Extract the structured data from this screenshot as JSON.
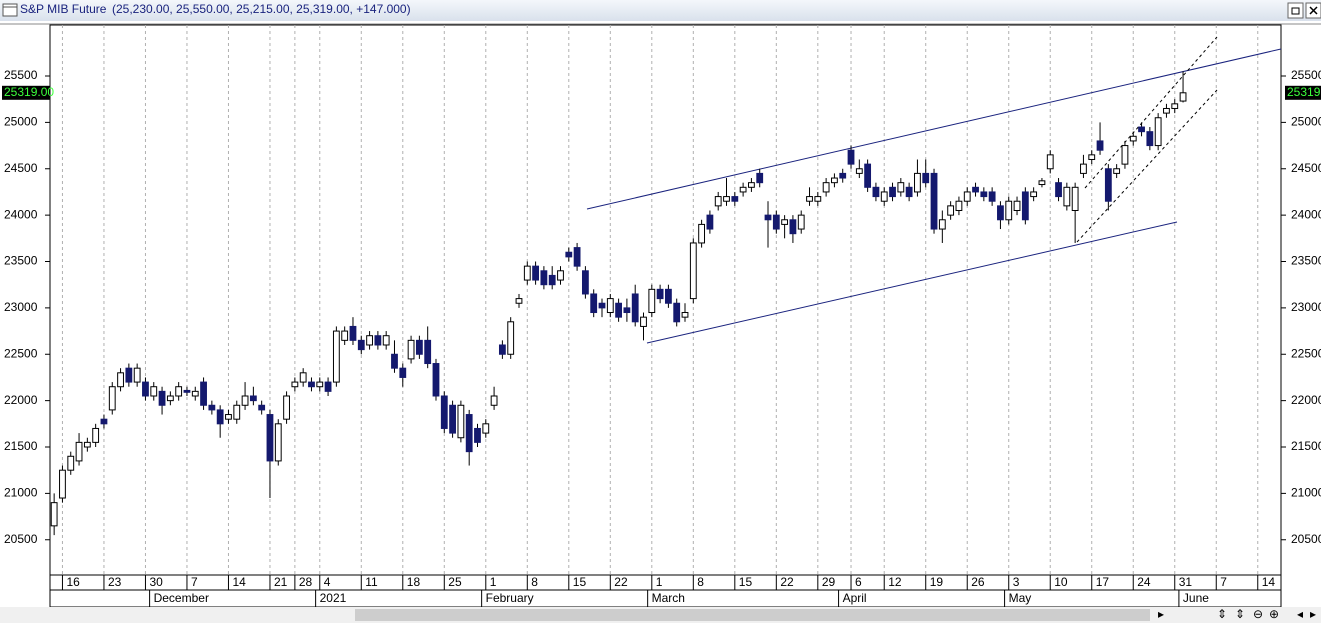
{
  "chart_data": {
    "type": "candlestick",
    "title": "S&P MIB Future",
    "summary": "(25,230.00, 25,550.00, 25,215.00, 25,319.00, +147.000)",
    "last_value_label": "25319.00",
    "up_color": "#ffffff",
    "down_color": "#14196e",
    "xlim": [
      -0.5,
      147.8
    ],
    "ylim": [
      20120,
      26050
    ],
    "yticks": [
      20500,
      21000,
      21500,
      22000,
      22500,
      23000,
      23500,
      24000,
      24500,
      25000,
      25500
    ],
    "xticks": [
      {
        "value": 1,
        "label": "16"
      },
      {
        "value": 6,
        "label": "23"
      },
      {
        "value": 11,
        "label": "30"
      },
      {
        "value": 16,
        "label": "7"
      },
      {
        "value": 21,
        "label": "14"
      },
      {
        "value": 26,
        "label": "21"
      },
      {
        "value": 29,
        "label": "28"
      },
      {
        "value": 32,
        "label": "4"
      },
      {
        "value": 37,
        "label": "11"
      },
      {
        "value": 42,
        "label": "18"
      },
      {
        "value": 47,
        "label": "25"
      },
      {
        "value": 52,
        "label": "1"
      },
      {
        "value": 57,
        "label": "8"
      },
      {
        "value": 62,
        "label": "15"
      },
      {
        "value": 67,
        "label": "22"
      },
      {
        "value": 72,
        "label": "1"
      },
      {
        "value": 77,
        "label": "8"
      },
      {
        "value": 82,
        "label": "15"
      },
      {
        "value": 87,
        "label": "22"
      },
      {
        "value": 92,
        "label": "29"
      },
      {
        "value": 96,
        "label": "6"
      },
      {
        "value": 100,
        "label": "12"
      },
      {
        "value": 105,
        "label": "19"
      },
      {
        "value": 110,
        "label": "26"
      },
      {
        "value": 115,
        "label": "3"
      },
      {
        "value": 120,
        "label": "10"
      },
      {
        "value": 125,
        "label": "17"
      },
      {
        "value": 130,
        "label": "24"
      },
      {
        "value": 135,
        "label": "31"
      },
      {
        "value": 140,
        "label": "7"
      },
      {
        "value": 145,
        "label": "14"
      }
    ],
    "xticks2": [
      {
        "value": 11.5,
        "label": "December"
      },
      {
        "value": 31.5,
        "label": "2021"
      },
      {
        "value": 51.5,
        "label": "February"
      },
      {
        "value": 71.5,
        "label": "March"
      },
      {
        "value": 94.5,
        "label": "April"
      },
      {
        "value": 114.5,
        "label": "May"
      },
      {
        "value": 135.5,
        "label": "June"
      }
    ],
    "open": [
      20650,
      20950,
      21250,
      21350,
      21500,
      21550,
      21800,
      21900,
      22150,
      22350,
      22200,
      22200,
      22050,
      22100,
      22000,
      22050,
      22110,
      22050,
      22200,
      21950,
      21900,
      21800,
      21800,
      21950,
      22050,
      21950,
      21850,
      21350,
      21800,
      22150,
      22200,
      22200,
      22150,
      22200,
      22200,
      22650,
      22800,
      22650,
      22600,
      22700,
      22600,
      22500,
      22350,
      22450,
      22650,
      22650,
      22400,
      22050,
      21950,
      21600,
      21850,
      21700,
      21650,
      21950,
      22600,
      22500,
      23050,
      23300,
      23450,
      23400,
      23350,
      23300,
      23600,
      23650,
      23400,
      23150,
      23050,
      22950,
      23050,
      23000,
      23150,
      22800,
      22950,
      23200,
      23200,
      23050,
      22900,
      23100,
      23700,
      24000,
      24100,
      24150,
      24200,
      24250,
      24300,
      24450,
      24000,
      24000,
      23900,
      23950,
      23850,
      24150,
      24150,
      24250,
      24350,
      24450,
      24700,
      24450,
      24550,
      24300,
      24150,
      24300,
      24250,
      24300,
      24250,
      24450,
      24450,
      23850,
      24000,
      24050,
      24150,
      24300,
      24250,
      24250,
      24100,
      23950,
      24050,
      24250,
      24200,
      24330,
      24500,
      24350,
      24100,
      24050,
      24450,
      24600,
      24800,
      24500,
      24450,
      24550,
      24800,
      24950,
      24900,
      24750,
      25100,
      25150,
      25230
    ],
    "high": [
      21000,
      21300,
      21450,
      21650,
      21600,
      21750,
      21850,
      22200,
      22350,
      22400,
      22400,
      22250,
      22200,
      22150,
      22100,
      22200,
      22150,
      22150,
      22250,
      22000,
      21950,
      21900,
      22000,
      22200,
      22150,
      22000,
      21900,
      21800,
      22100,
      22250,
      22350,
      22250,
      22250,
      22250,
      22800,
      22800,
      22900,
      22700,
      22750,
      22750,
      22750,
      22650,
      22400,
      22700,
      22700,
      22800,
      22450,
      22100,
      22000,
      22000,
      21900,
      21750,
      21800,
      22150,
      22650,
      22900,
      23150,
      23500,
      23500,
      23450,
      23450,
      23450,
      23650,
      23700,
      23450,
      23200,
      23100,
      23150,
      23100,
      23100,
      23250,
      22950,
      23250,
      23250,
      23250,
      23100,
      23050,
      23750,
      23950,
      24050,
      24250,
      24400,
      24250,
      24350,
      24400,
      24500,
      24150,
      24050,
      24000,
      24000,
      24050,
      24300,
      24250,
      24400,
      24450,
      24500,
      24750,
      24600,
      24600,
      24350,
      24300,
      24350,
      24400,
      24350,
      24600,
      24600,
      24500,
      24050,
      24150,
      24200,
      24300,
      24350,
      24300,
      24300,
      24150,
      24200,
      24200,
      24300,
      24300,
      24400,
      24700,
      24400,
      24350,
      24350,
      24650,
      24700,
      25000,
      24550,
      24550,
      24800,
      24900,
      25000,
      24950,
      25100,
      25200,
      25250,
      25550
    ],
    "low": [
      20550,
      20900,
      21200,
      21300,
      21450,
      21500,
      21700,
      21850,
      22100,
      22150,
      22150,
      22000,
      22000,
      21850,
      21950,
      22000,
      22050,
      22000,
      21900,
      21850,
      21600,
      21750,
      21750,
      21900,
      21950,
      21850,
      20950,
      21300,
      21750,
      22100,
      22150,
      22100,
      22100,
      22050,
      22150,
      22600,
      22600,
      22500,
      22550,
      22550,
      22550,
      22300,
      22150,
      22400,
      22450,
      22350,
      22000,
      21650,
      21600,
      21550,
      21300,
      21500,
      21600,
      21900,
      22450,
      22450,
      23000,
      23250,
      23250,
      23200,
      23200,
      23250,
      23500,
      23400,
      23100,
      22900,
      22900,
      22900,
      22850,
      22850,
      22800,
      22650,
      22900,
      23050,
      23000,
      22800,
      22850,
      23050,
      23650,
      23800,
      24050,
      24100,
      24100,
      24200,
      24250,
      24300,
      23650,
      23800,
      23750,
      23700,
      23800,
      24100,
      24100,
      24200,
      24300,
      24350,
      24500,
      24400,
      24250,
      24150,
      24100,
      24150,
      24200,
      24150,
      24200,
      24300,
      23800,
      23700,
      23950,
      24000,
      24100,
      24200,
      24150,
      24100,
      23850,
      23900,
      24000,
      23900,
      24150,
      24300,
      24450,
      24150,
      24050,
      23700,
      24400,
      24550,
      24650,
      24050,
      24400,
      24500,
      24750,
      24850,
      24700,
      24700,
      25050,
      25100,
      25215
    ],
    "close": [
      20900,
      21250,
      21400,
      21550,
      21550,
      21700,
      21750,
      22150,
      22300,
      22200,
      22350,
      22050,
      22150,
      21950,
      22050,
      22150,
      22090,
      22100,
      21950,
      21900,
      21750,
      21850,
      21950,
      22050,
      22000,
      21900,
      21350,
      21750,
      22050,
      22200,
      22300,
      22150,
      22200,
      22100,
      22750,
      22750,
      22650,
      22550,
      22700,
      22600,
      22700,
      22350,
      22250,
      22650,
      22500,
      22400,
      22050,
      21700,
      21650,
      21950,
      21450,
      21550,
      21750,
      22050,
      22500,
      22850,
      23100,
      23450,
      23300,
      23250,
      23250,
      23400,
      23550,
      23450,
      23150,
      22950,
      23000,
      23100,
      22900,
      22950,
      22850,
      22900,
      23200,
      23100,
      23050,
      22850,
      22950,
      23700,
      23900,
      23850,
      24200,
      24200,
      24150,
      24300,
      24350,
      24350,
      23950,
      23850,
      23950,
      23800,
      24000,
      24200,
      24200,
      24350,
      24400,
      24400,
      24550,
      24500,
      24300,
      24200,
      24250,
      24200,
      24350,
      24200,
      24450,
      24350,
      23850,
      23950,
      24100,
      24150,
      24250,
      24250,
      24200,
      24150,
      23950,
      24150,
      24150,
      23950,
      24250,
      24370,
      24650,
      24200,
      24300,
      24300,
      24550,
      24650,
      24700,
      24150,
      24500,
      24750,
      24850,
      24900,
      24750,
      25050,
      25150,
      25200,
      25319
    ]
  }
}
